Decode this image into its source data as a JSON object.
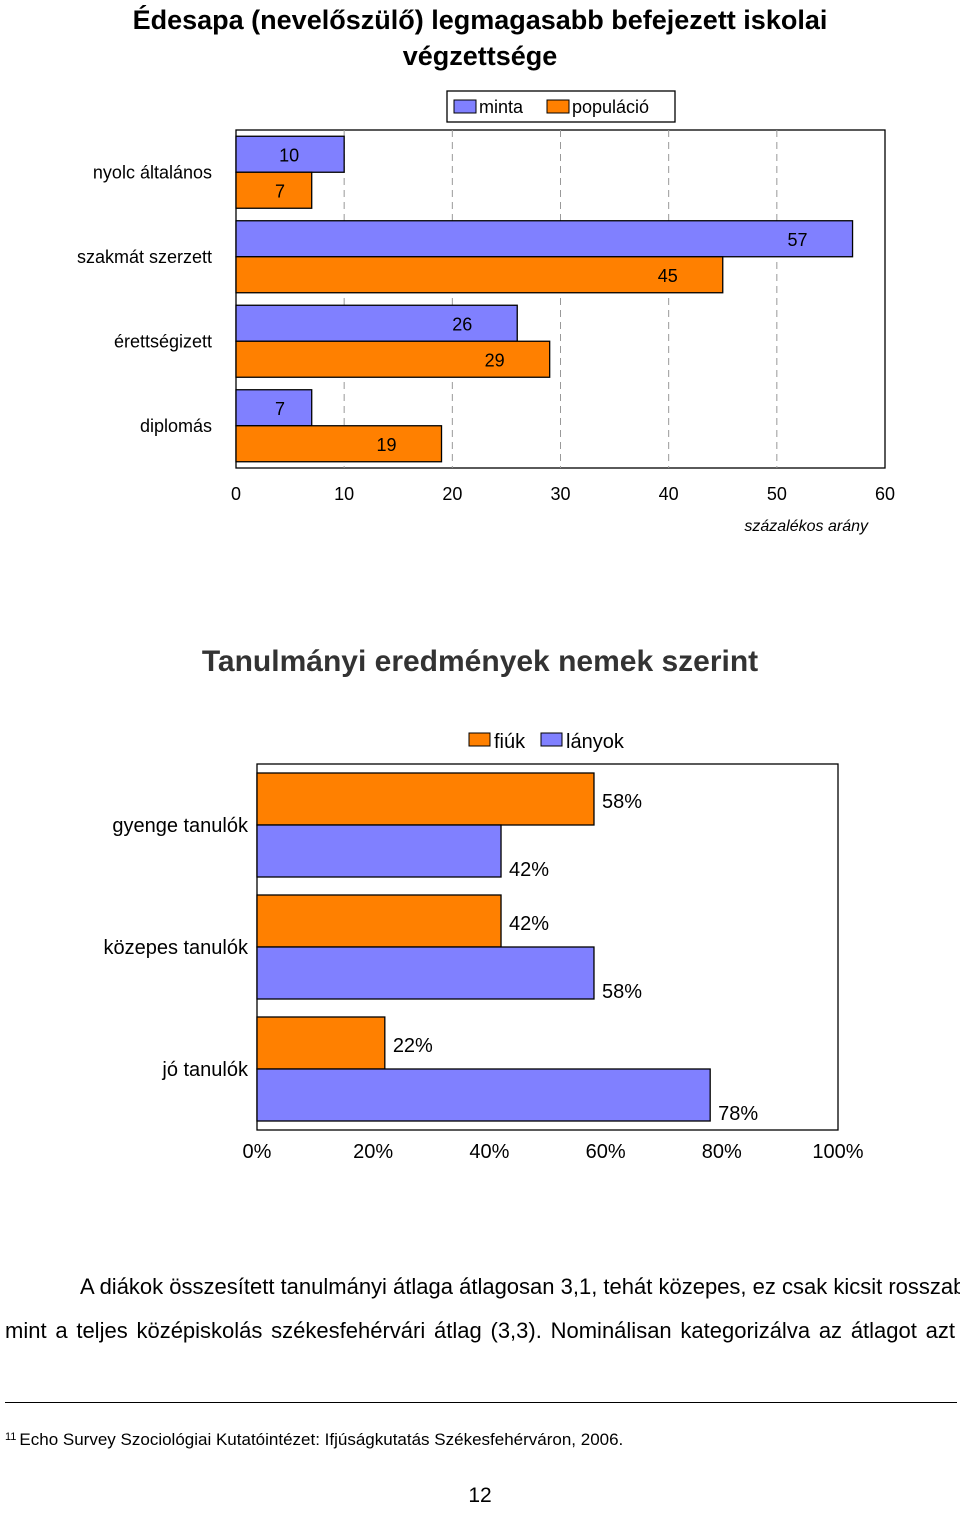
{
  "chart_data": [
    {
      "type": "bar",
      "orientation": "horizontal",
      "title": "Édesapa (nevelőszülő) legmagasabb befejezett iskolai végzettsége",
      "categories": [
        "nyolc általános",
        "szakmát szerzett",
        "érettségizett",
        "diplomás"
      ],
      "series": [
        {
          "name": "minta",
          "color": "#8080ff",
          "values": [
            10,
            57,
            26,
            7
          ]
        },
        {
          "name": "populáció",
          "color": "#ff8000",
          "values": [
            7,
            45,
            29,
            19
          ]
        }
      ],
      "xlabel": "százalékos arány",
      "xlim": [
        0,
        60
      ],
      "xticks": [
        "0",
        "10",
        "20",
        "30",
        "40",
        "50",
        "60"
      ],
      "gridlines": "vertical dashed",
      "legend_position": "top-right"
    },
    {
      "type": "bar",
      "orientation": "horizontal",
      "title": "Tanulmányi eredmények nemek szerint",
      "categories": [
        "gyenge tanulók",
        "közepes tanulók",
        "jó tanulók"
      ],
      "series": [
        {
          "name": "fiúk",
          "color": "#ff8000",
          "values": [
            58,
            42,
            22
          ],
          "labels": [
            "58%",
            "42%",
            "22%"
          ]
        },
        {
          "name": "lányok",
          "color": "#8080ff",
          "values": [
            42,
            58,
            78
          ],
          "labels": [
            "42%",
            "58%",
            "78%"
          ]
        }
      ],
      "xlim": [
        0,
        100
      ],
      "xticks": [
        "0%",
        "20%",
        "40%",
        "60%",
        "80%",
        "100%"
      ],
      "legend_position": "top"
    }
  ],
  "text": {
    "paragraph_line1": "A diákok összesített tanulmányi átlaga átlagosan 3,1, tehát közepes, ez csak kicsit rosszabb,",
    "paragraph_line2": "mint a teljes középiskolás székesfehérvári átlag (3,3). Nominálisan kategorizálva az átlagot azt",
    "footnote_mark": "11",
    "footnote": "Echo Survey Szociológiai Kutatóintézet: Ifjúságkutatás Székesfehérváron, 2006.",
    "page_number": "12"
  }
}
